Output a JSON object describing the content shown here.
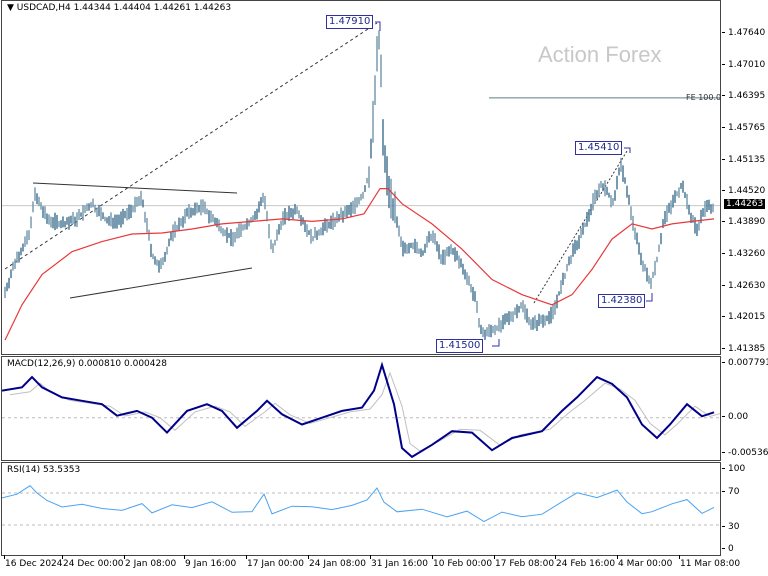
{
  "header": {
    "symbol": "USDCAD,H4",
    "ohlc": "1.44344 1.44404 1.44261 1.44263",
    "text": "▼ USDCAD,H4  1.44344 1.44404 1.44261 1.44263"
  },
  "watermark": "Action Forex",
  "current_price": "1.44263",
  "price_axis": [
    "1.47640",
    "1.47010",
    "1.46395",
    "1.45765",
    "1.45135",
    "1.44520",
    "1.43890",
    "1.43260",
    "1.42630",
    "1.42015",
    "1.41385"
  ],
  "annotations": {
    "high_1": "1.47910",
    "high_2": "1.45410",
    "low_1": "1.41500",
    "low_2": "1.42380",
    "fe_label": "FE 100.0"
  },
  "macd": {
    "title": "MACD(12,26,9) 0.000810 0.000428",
    "axis": [
      "0.007791",
      "0.00",
      "-0.005367"
    ]
  },
  "rsi": {
    "title": "RSI(14) 53.5353",
    "axis": [
      "100",
      "70",
      "30",
      "0"
    ]
  },
  "time_axis": [
    "16 Dec 2024",
    "24 Dec 00:00",
    "2 Jan 08:00",
    "9 Jan 16:00",
    "17 Jan 00:00",
    "24 Jan 08:00",
    "31 Jan 16:00",
    "10 Feb 00:00",
    "17 Feb 08:00",
    "24 Feb 16:00",
    "4 Mar 00:00",
    "11 Mar 08:00"
  ],
  "colors": {
    "bars": "#3d6f8e",
    "ma": "#e8383a",
    "macd": "#00008b",
    "signal": "#c0c0c0",
    "rsi": "#4aa3f0",
    "label_border": "#3030a0"
  },
  "chart_data": [
    {
      "type": "bar",
      "title": "USDCAD,H4",
      "subtitle": "1.44344 1.44404 1.44261 1.44263",
      "xlabel": "",
      "ylabel": "Price",
      "ylim": [
        1.41385,
        1.4764
      ],
      "categories": [
        "16 Dec 2024",
        "24 Dec 00:00",
        "2 Jan 08:00",
        "9 Jan 16:00",
        "17 Jan 00:00",
        "24 Jan 08:00",
        "31 Jan 16:00",
        "10 Feb 00:00",
        "17 Feb 08:00",
        "24 Feb 16:00",
        "4 Mar 00:00",
        "11 Mar 08:00"
      ],
      "series": [
        {
          "name": "Close (approx)",
          "values": [
            1.43,
            1.439,
            1.438,
            1.44,
            1.4395,
            1.441,
            1.455,
            1.433,
            1.42,
            1.438,
            1.43,
            1.4426
          ]
        },
        {
          "name": "Moving Average (red)",
          "values": [
            1.416,
            1.434,
            1.437,
            1.438,
            1.438,
            1.4395,
            1.446,
            1.437,
            1.424,
            1.425,
            1.437,
            1.44
          ]
        }
      ],
      "annotations": [
        {
          "label": "1.47910",
          "type": "swing high"
        },
        {
          "label": "1.45410",
          "type": "swing high"
        },
        {
          "label": "1.41500",
          "type": "swing low"
        },
        {
          "label": "1.42380",
          "type": "swing low"
        },
        {
          "label": "FE 100.0",
          "value": 1.46395
        }
      ],
      "grid": false
    },
    {
      "type": "line",
      "title": "MACD(12,26,9) 0.000810 0.000428",
      "ylim": [
        -0.005367,
        0.007791
      ],
      "categories": [
        "16 Dec 2024",
        "24 Dec 00:00",
        "2 Jan 08:00",
        "9 Jan 16:00",
        "17 Jan 00:00",
        "24 Jan 08:00",
        "31 Jan 16:00",
        "10 Feb 00:00",
        "17 Feb 08:00",
        "24 Feb 16:00",
        "4 Mar 00:00",
        "11 Mar 08:00"
      ],
      "series": [
        {
          "name": "MACD",
          "values": [
            0.004,
            0.0015,
            -0.0005,
            0.0005,
            0.001,
            0.0,
            0.0045,
            -0.0025,
            -0.0045,
            0.001,
            -0.001,
            0.0008
          ]
        },
        {
          "name": "Signal",
          "values": [
            0.0035,
            0.0018,
            0.0,
            0.0004,
            0.0008,
            0.0002,
            0.003,
            -0.002,
            -0.004,
            0.0005,
            0.0,
            0.0004
          ]
        }
      ],
      "grid": false
    },
    {
      "type": "line",
      "title": "RSI(14) 53.5353",
      "ylim": [
        0,
        100
      ],
      "levels": [
        70,
        30
      ],
      "categories": [
        "16 Dec 2024",
        "24 Dec 00:00",
        "2 Jan 08:00",
        "9 Jan 16:00",
        "17 Jan 00:00",
        "24 Jan 08:00",
        "31 Jan 16:00",
        "10 Feb 00:00",
        "17 Feb 08:00",
        "24 Feb 16:00",
        "4 Mar 00:00",
        "11 Mar 08:00"
      ],
      "series": [
        {
          "name": "RSI(14)",
          "values": [
            75,
            52,
            55,
            50,
            60,
            52,
            72,
            45,
            38,
            62,
            45,
            54
          ]
        }
      ],
      "grid": false
    }
  ]
}
